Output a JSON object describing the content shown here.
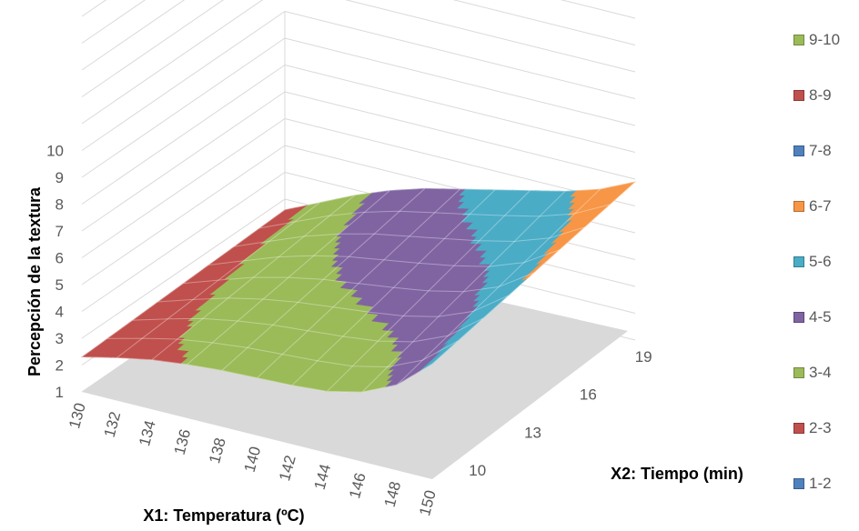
{
  "chart_data": {
    "type": "surface",
    "xlabel": "X1: Temperatura (ºC)",
    "ylabel": "X2: Tiempo (min)",
    "zlabel": "Percepción de la textura",
    "x_ticks": [
      "130",
      "132",
      "134",
      "136",
      "138",
      "140",
      "142",
      "144",
      "146",
      "148",
      "150"
    ],
    "y_ticks": [
      "10",
      "13",
      "16",
      "19"
    ],
    "z_ticks": [
      "1",
      "2",
      "3",
      "4",
      "5",
      "6",
      "7",
      "8",
      "9",
      "10"
    ],
    "xlim": [
      130,
      150
    ],
    "ylim": [
      9,
      20
    ],
    "zlim": [
      1,
      10
    ],
    "surface_samples": {
      "x": [
        130,
        132,
        134,
        136,
        138,
        140,
        142,
        144,
        146,
        148,
        150
      ],
      "z_at_front": [
        2.3,
        2.6,
        2.85,
        3.0,
        3.1,
        3.15,
        3.2,
        3.3,
        3.6,
        4.2,
        5.3
      ],
      "z_at_back": [
        2.6,
        3.2,
        3.8,
        4.3,
        4.7,
        5.0,
        5.3,
        5.6,
        5.9,
        6.3,
        6.9
      ]
    },
    "legend": {
      "placement": "right",
      "items": [
        {
          "label": "9-10",
          "color": "#9bbb59",
          "border": "#71893f"
        },
        {
          "label": "8-9",
          "color": "#c0504d",
          "border": "#8c3836"
        },
        {
          "label": "7-8",
          "color": "#4f81bd",
          "border": "#385d8a"
        },
        {
          "label": "6-7",
          "color": "#f79646",
          "border": "#b66d31"
        },
        {
          "label": "5-6",
          "color": "#4bacc6",
          "border": "#357d91"
        },
        {
          "label": "4-5",
          "color": "#8064a2",
          "border": "#5c4776"
        },
        {
          "label": "3-4",
          "color": "#9bbb59",
          "border": "#71893f"
        },
        {
          "label": "2-3",
          "color": "#c0504d",
          "border": "#8c3836"
        },
        {
          "label": "1-2",
          "color": "#4f81bd",
          "border": "#385d8a"
        }
      ]
    },
    "band_colors": {
      "2-3": "#c0504d",
      "3-4": "#9bbb59",
      "4-5": "#8064a2",
      "5-6": "#4bacc6",
      "6-7": "#f79646"
    }
  }
}
